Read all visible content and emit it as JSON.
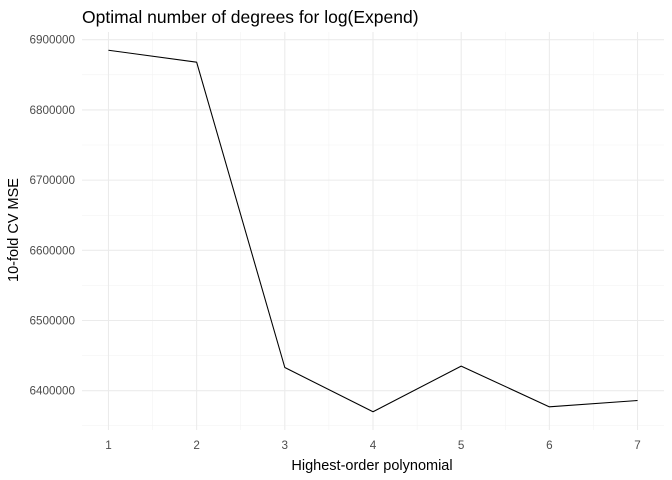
{
  "chart_data": {
    "type": "line",
    "title": "Optimal number of degrees for log(Expend)",
    "xlabel": "Highest-order polynomial",
    "ylabel": "10-fold CV MSE",
    "x": [
      1,
      2,
      3,
      4,
      5,
      6,
      7
    ],
    "values": [
      6885000,
      6868000,
      6433000,
      6370000,
      6435000,
      6377000,
      6386000
    ],
    "xticks": [
      "1",
      "2",
      "3",
      "4",
      "5",
      "6",
      "7"
    ],
    "yticks": [
      "6400000",
      "6500000",
      "6600000",
      "6700000",
      "6800000",
      "6900000"
    ],
    "ytick_values": [
      6400000,
      6500000,
      6600000,
      6700000,
      6800000,
      6900000
    ],
    "xlim": [
      0.7,
      7.3
    ],
    "ylim": [
      6344000,
      6911000
    ],
    "grid": true,
    "line_color": "#000000",
    "theme": "minimal"
  }
}
